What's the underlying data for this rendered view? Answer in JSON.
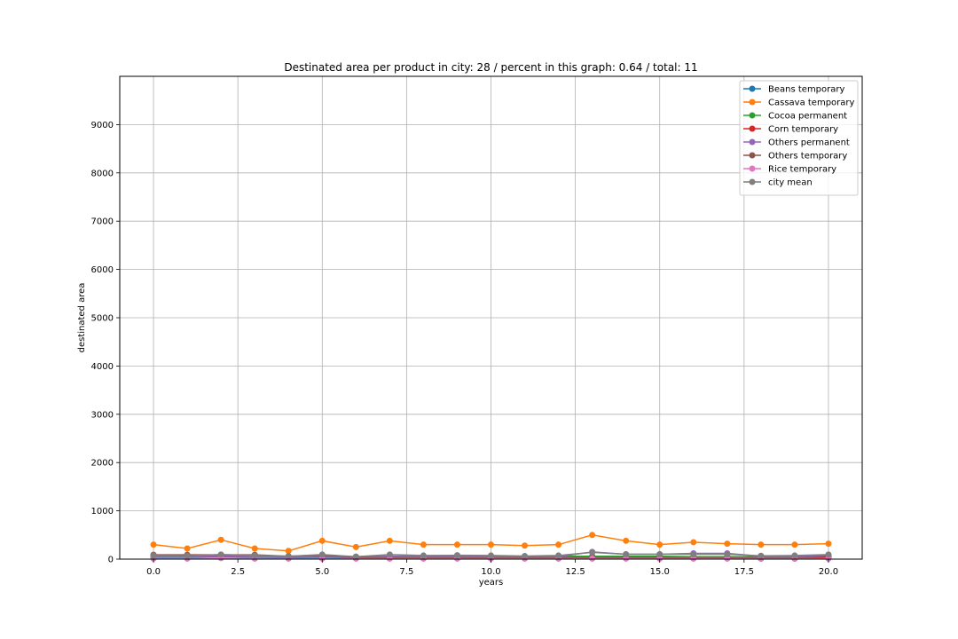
{
  "chart_data": {
    "type": "line",
    "title": "Destinated area per product in city: 28 / percent in this graph: 0.64 / total: 11",
    "xlabel": "years",
    "ylabel": "destinated area",
    "xlim": [
      -1,
      21
    ],
    "ylim": [
      0,
      10000
    ],
    "xticks": [
      0.0,
      2.5,
      5.0,
      7.5,
      10.0,
      12.5,
      15.0,
      17.5,
      20.0
    ],
    "xtick_labels": [
      "0.0",
      "2.5",
      "5.0",
      "7.5",
      "10.0",
      "12.5",
      "15.0",
      "17.5",
      "20.0"
    ],
    "yticks": [
      0,
      1000,
      2000,
      3000,
      4000,
      5000,
      6000,
      7000,
      8000,
      9000
    ],
    "ytick_labels": [
      "0",
      "1000",
      "2000",
      "3000",
      "4000",
      "5000",
      "6000",
      "7000",
      "8000",
      "9000"
    ],
    "grid": true,
    "legend_position": "top-right",
    "x": [
      0,
      1,
      2,
      3,
      4,
      5,
      6,
      7,
      8,
      9,
      10,
      11,
      12,
      13,
      14,
      15,
      16,
      17,
      18,
      19,
      20
    ],
    "series": [
      {
        "name": "Beans temporary",
        "color": "#1f77b4",
        "values": [
          40,
          40,
          50,
          40,
          30,
          40,
          30,
          40,
          40,
          40,
          40,
          30,
          40,
          40,
          40,
          40,
          30,
          30,
          30,
          30,
          40
        ]
      },
      {
        "name": "Cassava temporary",
        "color": "#ff7f0e",
        "values": [
          300,
          220,
          400,
          220,
          170,
          380,
          250,
          380,
          300,
          300,
          300,
          280,
          300,
          500,
          380,
          300,
          350,
          320,
          300,
          300,
          320
        ]
      },
      {
        "name": "Cocoa permanent",
        "color": "#2ca02c",
        "values": [
          60,
          60,
          70,
          60,
          50,
          60,
          50,
          60,
          60,
          60,
          60,
          50,
          60,
          60,
          60,
          60,
          50,
          50,
          50,
          50,
          60
        ]
      },
      {
        "name": "Corn temporary",
        "color": "#d62728",
        "values": [
          80,
          80,
          80,
          80,
          50,
          70,
          30,
          20,
          20,
          20,
          20,
          20,
          20,
          20,
          20,
          20,
          20,
          20,
          10,
          10,
          40
        ]
      },
      {
        "name": "Others permanent",
        "color": "#9467bd",
        "values": [
          50,
          50,
          60,
          50,
          40,
          60,
          40,
          60,
          50,
          50,
          50,
          40,
          50,
          150,
          100,
          100,
          120,
          120,
          60,
          60,
          80
        ]
      },
      {
        "name": "Others temporary",
        "color": "#8c564b",
        "values": [
          90,
          90,
          90,
          90,
          60,
          80,
          40,
          30,
          30,
          30,
          30,
          30,
          30,
          30,
          30,
          30,
          30,
          30,
          20,
          20,
          60
        ]
      },
      {
        "name": "Rice temporary",
        "color": "#e377c2",
        "values": [
          10,
          10,
          20,
          10,
          10,
          10,
          10,
          10,
          10,
          10,
          10,
          10,
          10,
          10,
          10,
          10,
          10,
          10,
          10,
          10,
          10
        ]
      },
      {
        "name": "city mean",
        "color": "#7f7f7f",
        "values": [
          75,
          70,
          95,
          75,
          60,
          95,
          50,
          95,
          75,
          80,
          75,
          65,
          75,
          140,
          100,
          100,
          100,
          100,
          70,
          75,
          95
        ]
      }
    ]
  }
}
